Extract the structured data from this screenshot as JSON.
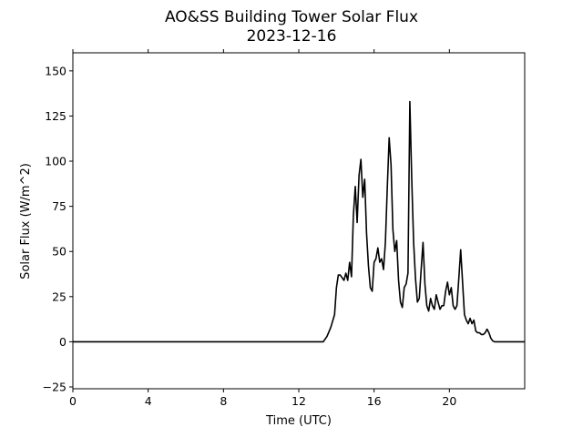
{
  "chart_data": {
    "type": "line",
    "title": "AO&SS Building Tower Solar Flux",
    "subtitle": "2023-12-16",
    "xlabel": "Time (UTC)",
    "ylabel": "Solar Flux (W/m^2)",
    "xlim": [
      0,
      24
    ],
    "ylim": [
      -26,
      160
    ],
    "xticks": [
      0,
      4,
      8,
      12,
      16,
      20
    ],
    "xtick_labels": [
      "0",
      "4",
      "8",
      "12",
      "16",
      "20"
    ],
    "yticks": [
      -25,
      0,
      25,
      50,
      75,
      100,
      125,
      150
    ],
    "ytick_labels": [
      "−25",
      "0",
      "25",
      "50",
      "75",
      "100",
      "125",
      "150"
    ],
    "grid": false,
    "legend": "none",
    "series": [
      {
        "color": "#000000",
        "x": [
          0,
          13.3,
          13.5,
          13.7,
          13.9,
          14.0,
          14.1,
          14.2,
          14.4,
          14.5,
          14.6,
          14.7,
          14.8,
          14.9,
          15.0,
          15.1,
          15.2,
          15.3,
          15.4,
          15.5,
          15.6,
          15.7,
          15.8,
          15.9,
          16.0,
          16.1,
          16.2,
          16.3,
          16.4,
          16.5,
          16.6,
          16.7,
          16.8,
          16.9,
          17.0,
          17.1,
          17.2,
          17.3,
          17.4,
          17.5,
          17.6,
          17.7,
          17.8,
          17.9,
          18.0,
          18.1,
          18.2,
          18.3,
          18.4,
          18.5,
          18.6,
          18.7,
          18.8,
          18.9,
          19.0,
          19.1,
          19.2,
          19.3,
          19.4,
          19.5,
          19.6,
          19.7,
          19.8,
          19.9,
          20.0,
          20.1,
          20.2,
          20.3,
          20.4,
          20.5,
          20.6,
          20.7,
          20.8,
          20.9,
          21.0,
          21.1,
          21.2,
          21.3,
          21.4,
          21.5,
          21.6,
          21.7,
          21.8,
          21.9,
          22.0,
          22.1,
          22.2,
          22.3,
          22.4,
          22.5,
          22.7,
          23.0,
          24.0
        ],
        "y": [
          0,
          0,
          3,
          8,
          15,
          30,
          37,
          37,
          34,
          38,
          34,
          44,
          36,
          70,
          86,
          66,
          92,
          101,
          80,
          90,
          60,
          42,
          30,
          28,
          44,
          46,
          52,
          44,
          46,
          40,
          55,
          85,
          113,
          98,
          62,
          50,
          56,
          34,
          22,
          19,
          30,
          32,
          38,
          133,
          90,
          55,
          35,
          22,
          24,
          40,
          55,
          32,
          20,
          17,
          24,
          20,
          18,
          26,
          22,
          18,
          20,
          20,
          28,
          33,
          26,
          30,
          20,
          18,
          20,
          35,
          51,
          33,
          15,
          12,
          10,
          13,
          10,
          12,
          6,
          5,
          5,
          4,
          4,
          5,
          7,
          5,
          2,
          0.5,
          0,
          0,
          0,
          0,
          0
        ]
      }
    ]
  }
}
